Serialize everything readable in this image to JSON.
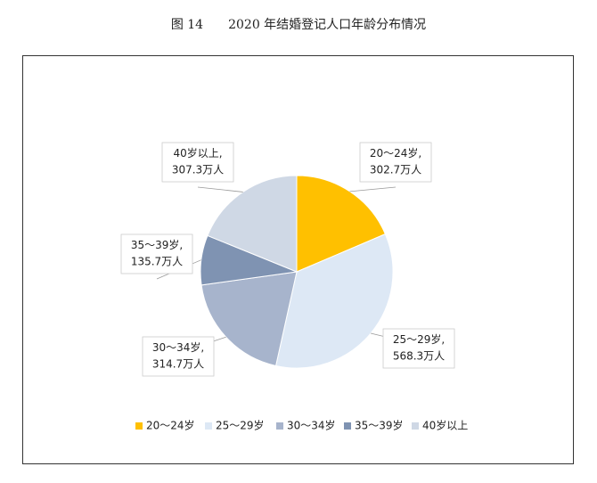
{
  "chart_data": {
    "type": "pie",
    "title": "图 14　　2020 年结婚登记人口年龄分布情况",
    "categories": [
      "20～24岁",
      "25～29岁",
      "30～34岁",
      "35～39岁",
      "40岁以上"
    ],
    "values": [
      302.7,
      568.3,
      314.7,
      135.7,
      307.3
    ],
    "value_labels": [
      "302.7万人",
      "568.3万人",
      "314.7万人",
      "135.7万人",
      "307.3万人"
    ],
    "label_separator": ",",
    "colors": [
      "#ffc000",
      "#dde8f5",
      "#a7b4cc",
      "#7f93b2",
      "#cfd8e5"
    ],
    "legend": "bottom"
  }
}
